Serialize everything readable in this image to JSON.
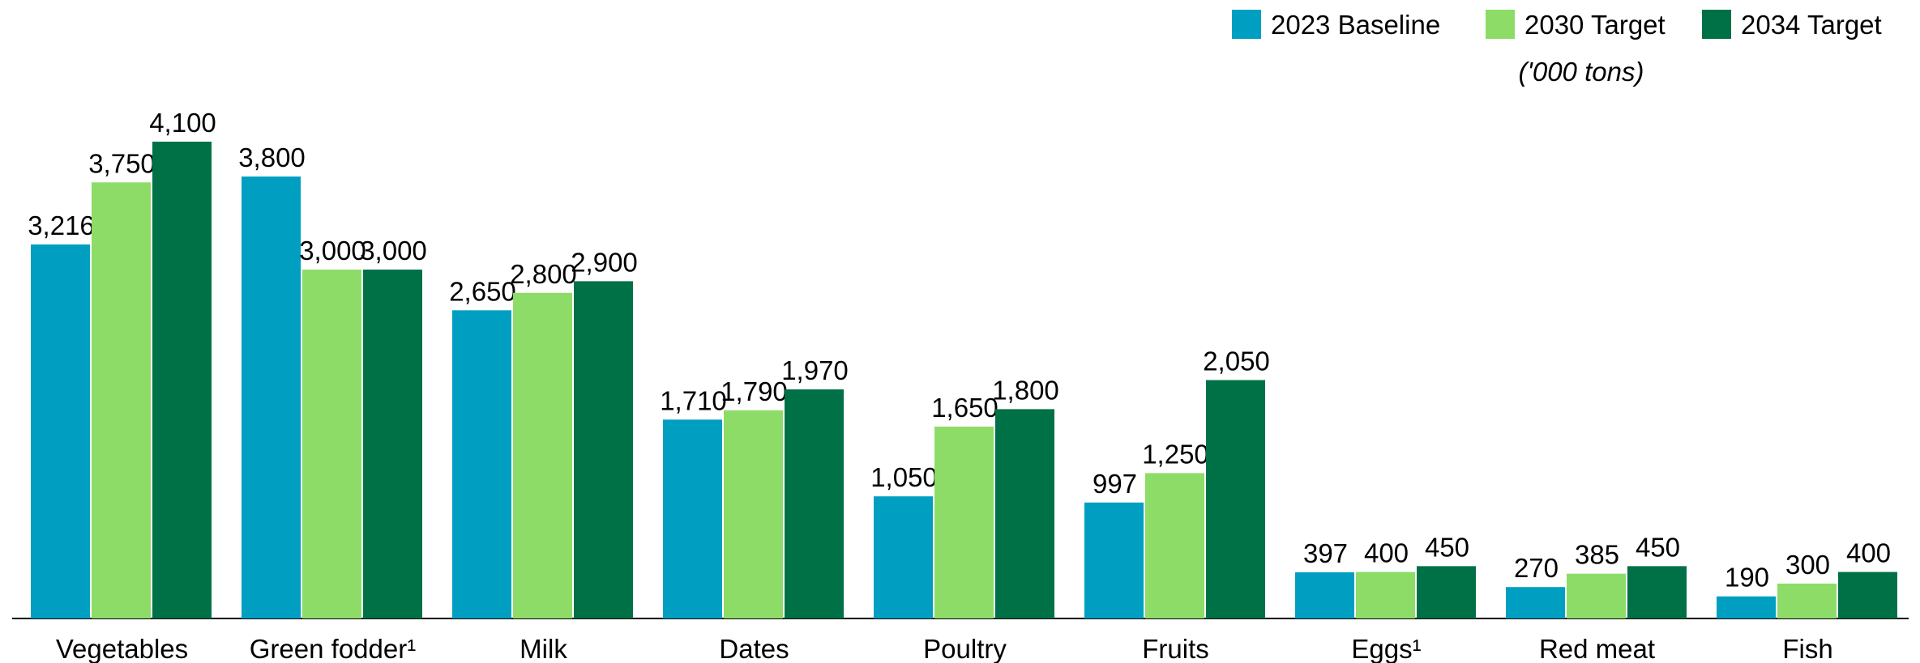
{
  "chart_data": {
    "type": "bar",
    "unit_note": "('000 tons)",
    "categories": [
      "Vegetables",
      "Green fodder¹",
      "Milk",
      "Dates",
      "Poultry",
      "Fruits",
      "Eggs¹",
      "Red meat",
      "Fish"
    ],
    "series": [
      {
        "name": "2023 Baseline",
        "color": "#009fc1",
        "values": [
          3216,
          3800,
          2650,
          1710,
          1050,
          997,
          397,
          270,
          190
        ],
        "value_labels": [
          "3,216",
          "3,800",
          "2,650",
          "1,710",
          "1,050",
          "997",
          "397",
          "270",
          "190"
        ]
      },
      {
        "name": "2030 Target",
        "color": "#8ddc68",
        "values": [
          3750,
          3000,
          2800,
          1790,
          1650,
          1250,
          400,
          385,
          300
        ],
        "value_labels": [
          "3,750",
          "3,000",
          "2,800",
          "1,790",
          "1,650",
          "1,250",
          "400",
          "385",
          "300"
        ]
      },
      {
        "name": "2034 Target",
        "color": "#007147",
        "values": [
          4100,
          3000,
          2900,
          1970,
          1800,
          2050,
          450,
          450,
          400
        ],
        "value_labels": [
          "4,100",
          "3,000",
          "2,900",
          "1,970",
          "1,800",
          "2,050",
          "450",
          "450",
          "400"
        ]
      }
    ],
    "legend": "top-right"
  }
}
